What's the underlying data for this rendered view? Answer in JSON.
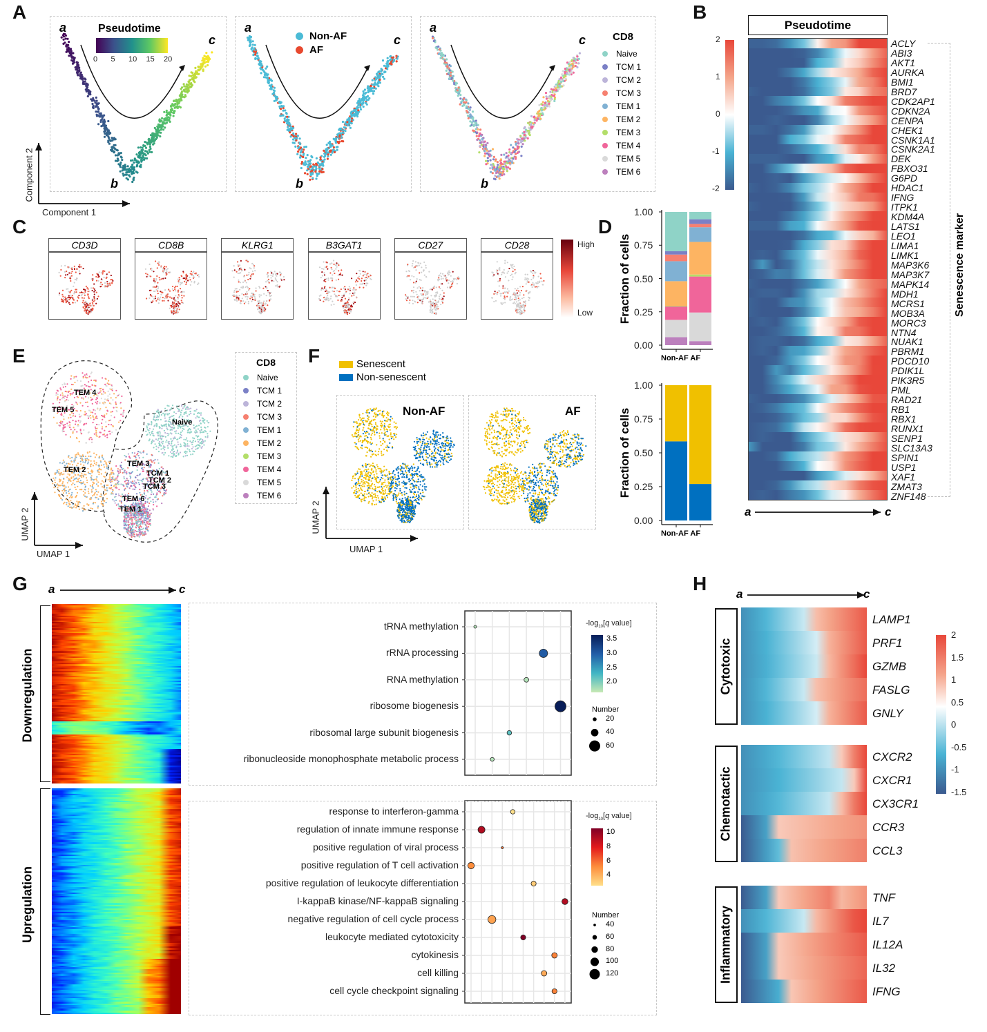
{
  "panels": {
    "A": "A",
    "B": "B",
    "C": "C",
    "D": "D",
    "E": "E",
    "F": "F",
    "G": "G",
    "H": "H"
  },
  "traj": {
    "a": "a",
    "b": "b",
    "c": "c"
  },
  "panelA": {
    "pseudotime_title": "Pseudotime",
    "pseudotime_ticks": [
      "0",
      "5",
      "10",
      "15",
      "20"
    ],
    "group_legend": [
      {
        "label": "Non-AF",
        "color": "#4bbbd6"
      },
      {
        "label": "AF",
        "color": "#e8492f"
      }
    ],
    "cd8_title": "CD8",
    "xaxis": "Component 1",
    "yaxis": "Component 2"
  },
  "celltypes": [
    {
      "label": "Naive",
      "color": "#8fd3c7"
    },
    {
      "label": "TCM 1",
      "color": "#7b80c6"
    },
    {
      "label": "TCM 2",
      "color": "#bcb4d9"
    },
    {
      "label": "TCM 3",
      "color": "#f68070"
    },
    {
      "label": "TEM 1",
      "color": "#80b1d3"
    },
    {
      "label": "TEM 2",
      "color": "#fdb462"
    },
    {
      "label": "TEM 3",
      "color": "#b3de69"
    },
    {
      "label": "TEM 4",
      "color": "#f0659a"
    },
    {
      "label": "TEM 5",
      "color": "#d9d9d9"
    },
    {
      "label": "TEM 6",
      "color": "#bc80bd"
    }
  ],
  "panelB": {
    "title": "Pseudotime",
    "side_label": "Senescence marker",
    "colorbar_ticks": [
      "2",
      "1",
      "0",
      "-1",
      "-2"
    ],
    "genes": [
      "ACLY",
      "ABI3",
      "AKT1",
      "AURKA",
      "BMI1",
      "BRD7",
      "CDK2AP1",
      "CDKN2A",
      "CENPA",
      "CHEK1",
      "CSNK1A1",
      "CSNK2A1",
      "DEK",
      "FBXO31",
      "G6PD",
      "HDAC1",
      "IFNG",
      "ITPK1",
      "KDM4A",
      "LATS1",
      "LEO1",
      "LIMA1",
      "LIMK1",
      "MAP3K6",
      "MAP3K7",
      "MAPK14",
      "MDH1",
      "MCRS1",
      "MOB3A",
      "MORC3",
      "NTN4",
      "NUAK1",
      "PBRM1",
      "PDCD10",
      "PDIK1L",
      "PIK3R5",
      "PML",
      "RAD21",
      "RB1",
      "RBX1",
      "RUNX1",
      "SENP1",
      "SLC13A3",
      "SPIN1",
      "USP1",
      "XAF1",
      "ZMAT3",
      "ZNF148"
    ]
  },
  "panelC": {
    "genes": [
      "CD3D",
      "CD8B",
      "KLRG1",
      "B3GAT1",
      "CD27",
      "CD28"
    ],
    "high": "High",
    "low": "Low"
  },
  "panelE": {
    "xaxis": "UMAP 1",
    "yaxis": "UMAP 2",
    "legend_title": "CD8",
    "cluster_labels": [
      "TEM 4",
      "TEM 5",
      "Naive",
      "TEM 2",
      "TEM 3",
      "TCM 1",
      "TCM 2",
      "TCM 3",
      "TEM 6",
      "TEM 1"
    ]
  },
  "panelF": {
    "legend": [
      {
        "label": "Senescent",
        "color": "#f0c000"
      },
      {
        "label": "Non-senescent",
        "color": "#0070c0"
      }
    ],
    "titles": [
      "Non-AF",
      "AF"
    ],
    "xaxis": "UMAP 1",
    "yaxis": "UMAP 2"
  },
  "chart_data": [
    {
      "type": "bar",
      "title": "D top",
      "ylabel": "Fraction of cells",
      "categories": [
        "Non-AF",
        "AF"
      ],
      "ylim": [
        0,
        1
      ],
      "yticks": [
        "1.00",
        "0.75",
        "0.50",
        "0.25",
        "0.00"
      ],
      "series": [
        {
          "name": "TEM 6",
          "values": [
            0.06,
            0.03
          ]
        },
        {
          "name": "TEM 5",
          "values": [
            0.13,
            0.215
          ]
        },
        {
          "name": "TEM 4",
          "values": [
            0.1,
            0.27
          ]
        },
        {
          "name": "TEM 3",
          "values": [
            0.005,
            0.015
          ]
        },
        {
          "name": "TEM 2",
          "values": [
            0.185,
            0.245
          ]
        },
        {
          "name": "TEM 1",
          "values": [
            0.15,
            0.11
          ]
        },
        {
          "name": "TCM 3",
          "values": [
            0.05,
            0.025
          ]
        },
        {
          "name": "TCM 2",
          "values": [
            0,
            0
          ]
        },
        {
          "name": "TCM 1",
          "values": [
            0.025,
            0.035
          ]
        },
        {
          "name": "Naive",
          "values": [
            0.295,
            0.055
          ]
        }
      ]
    },
    {
      "type": "bar",
      "title": "D bottom",
      "ylabel": "Fraction of cells",
      "categories": [
        "Non-AF",
        "AF"
      ],
      "ylim": [
        0,
        1
      ],
      "yticks": [
        "1.00",
        "0.75",
        "0.50",
        "0.25",
        "0.00"
      ],
      "series": [
        {
          "name": "Non-senescent",
          "values": [
            0.585,
            0.27
          ]
        },
        {
          "name": "Senescent",
          "values": [
            0.415,
            0.73
          ]
        }
      ]
    },
    {
      "type": "scatter",
      "title": "G downregulation enrichment",
      "legend_title": "-log10[q value]",
      "colorbar_ticks": [
        "3.5",
        "3.0",
        "2.5",
        "2.0"
      ],
      "size_title": "Number",
      "size_ticks": [
        20,
        40,
        60
      ],
      "terms": [
        "tRNA methylation",
        "rRNA processing",
        "RNA methylation",
        "ribosome biogenesis",
        "ribosomal large subunit biogenesis",
        "ribonucleoside monophosphate metabolic process"
      ],
      "x": [
        0,
        4,
        3,
        5,
        2,
        1
      ],
      "q": [
        1.8,
        3.0,
        1.8,
        3.6,
        2.2,
        1.8
      ],
      "number": [
        14,
        45,
        25,
        60,
        24,
        20
      ]
    },
    {
      "type": "scatter",
      "title": "G upregulation enrichment",
      "legend_title": "-log10[q value]",
      "colorbar_ticks": [
        "10",
        "8",
        "6",
        "4"
      ],
      "size_title": "Number",
      "size_ticks": [
        40,
        60,
        80,
        100,
        120
      ],
      "terms": [
        "response to interferon-gamma",
        "regulation of innate immune response",
        "positive regulation of viral process",
        "positive regulation of T cell activation",
        "positive regulation of leukocyte differentiation",
        "I-kappaB kinase/NF-kappaB signaling",
        "negative regulation of cell cycle process",
        "leukocyte mediated cytotoxicity",
        "cytokinesis",
        "cell killing",
        "cell cycle checkpoint signaling"
      ],
      "x": [
        4,
        1,
        3,
        0,
        6,
        9,
        2,
        5,
        8,
        7,
        8
      ],
      "q": [
        4,
        9,
        6.5,
        6,
        4.5,
        9,
        5.5,
        10,
        6.2,
        5.3,
        6.2
      ],
      "number": [
        60,
        85,
        35,
        80,
        65,
        75,
        95,
        65,
        70,
        70,
        65
      ]
    }
  ],
  "panelG": {
    "down_label": "Downregulation",
    "up_label": "Upregulation",
    "log_sub": "10"
  },
  "panelH": {
    "groups": [
      {
        "label": "Cytotoxic",
        "genes": [
          "LAMP1",
          "PRF1",
          "GZMB",
          "FASLG",
          "GNLY"
        ]
      },
      {
        "label": "Chemotactic",
        "genes": [
          "CXCR2",
          "CXCR1",
          "CX3CR1",
          "CCR3",
          "CCL3"
        ]
      },
      {
        "label": "Inflammatory",
        "genes": [
          "TNF",
          "IL7",
          "IL12A",
          "IL32",
          "IFNG"
        ]
      }
    ],
    "colorbar_ticks": [
      "2",
      "1.5",
      "1",
      "0.5",
      "0",
      "-0.5",
      "-1",
      "-1.5"
    ]
  }
}
